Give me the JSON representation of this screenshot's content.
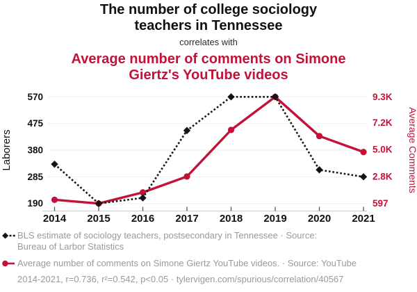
{
  "title": {
    "primary_line1": "The number of college sociology",
    "primary_line2": "teachers in Tennessee",
    "connector": "correlates with",
    "secondary_line1": "Average number of comments on Simone",
    "secondary_line2": "Giertz's YouTube videos"
  },
  "colors": {
    "secondary_red": "#c2123a",
    "series_black": "#141414",
    "legend_text": "#9a9a9a",
    "gridline": "#efefef",
    "axis_line": "#cccccc",
    "tick": "#555555",
    "text_black": "#111111"
  },
  "chart_data": {
    "type": "line",
    "x": [
      2014,
      2015,
      2016,
      2017,
      2018,
      2019,
      2020,
      2021
    ],
    "x_tick_labels": [
      "2014",
      "2015",
      "2016",
      "2017",
      "2018",
      "2019",
      "2020",
      "2021"
    ],
    "left_axis": {
      "label": "Laborers",
      "range": [
        190,
        570
      ],
      "ticks": [
        190,
        285,
        380,
        475,
        570
      ],
      "tick_labels": [
        "190",
        "285",
        "380",
        "475",
        "570"
      ]
    },
    "right_axis": {
      "label": "Average Comments",
      "range": [
        597,
        9300
      ],
      "ticks": [
        597,
        2800,
        5000,
        7200,
        9300
      ],
      "tick_labels": [
        "597",
        "2.8K",
        "5.0K",
        "7.2K",
        "9.3K"
      ]
    },
    "series": [
      {
        "id": "teachers",
        "name": "BLS estimate of sociology teachers, postsecondary in Tennessee",
        "axis": "left",
        "color": "#141414",
        "style": "dotted",
        "marker": "diamond",
        "values": [
          330,
          190,
          210,
          450,
          570,
          570,
          310,
          285
        ]
      },
      {
        "id": "comments",
        "name": "Average number of comments on Simone Giertz YouTube videos",
        "axis": "right",
        "color": "#c2123a",
        "style": "solid",
        "marker": "circle",
        "values": [
          900,
          597,
          1500,
          2800,
          6600,
          9300,
          6100,
          4800
        ]
      }
    ],
    "grid": "horizontal",
    "legend_position": "bottom"
  },
  "legend": {
    "item1_line1": "BLS estimate of sociology teachers, postsecondary in Tennessee · Source:",
    "item1_line2": "Bureau of Larbor Statistics",
    "item2": "Average number of comments on Simone Giertz YouTube videos. · Source: YouTube",
    "footnote": "2014-2021, r=0.736, r²=0.542, p<0.05 · tylervigen.com/spurious/correlation/40567"
  }
}
